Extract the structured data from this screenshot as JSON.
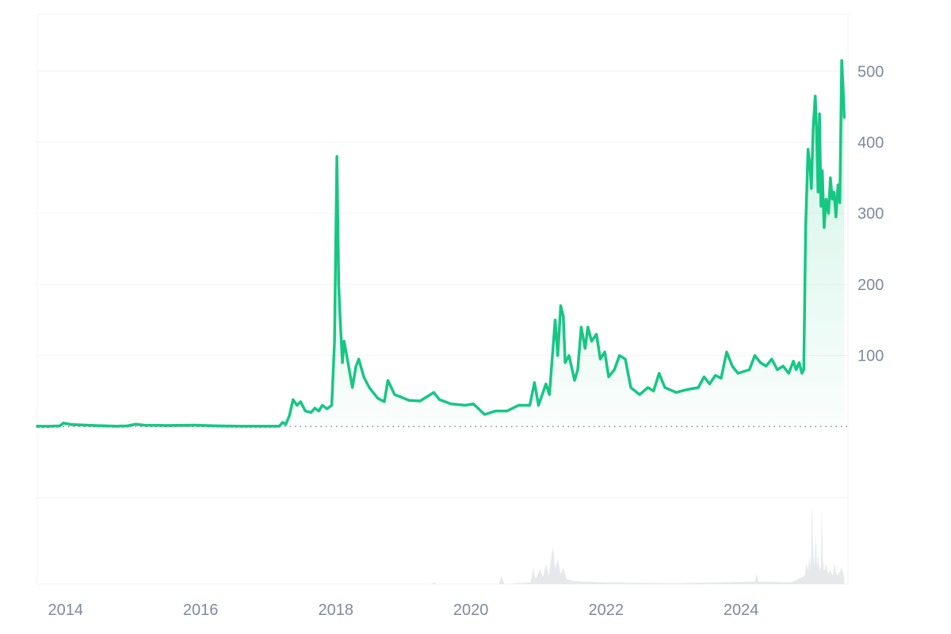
{
  "chart_data": {
    "type": "line",
    "ylim": [
      -100,
      580
    ],
    "xlim": [
      "2013-08-01",
      "2025-08-01"
    ],
    "y_ticks": [
      100,
      200,
      300,
      400,
      500
    ],
    "y_tick_labels": [
      "100",
      "200",
      "300",
      "400",
      "500"
    ],
    "x_ticks": [
      "2014-01-01",
      "2016-01-01",
      "2018-01-01",
      "2020-01-01",
      "2022-01-01",
      "2024-01-01"
    ],
    "x_tick_labels": [
      "2014",
      "2016",
      "2018",
      "2020",
      "2022",
      "2024"
    ],
    "reference_value": 0,
    "grid": true,
    "colors": {
      "up_line": "#16c784",
      "down_line": "#ea3943",
      "grid": "#eff2f5",
      "tick_text": "#808a9d",
      "volume": "#e6e8ec"
    },
    "series": [
      {
        "values": [
          [
            "2013-08-01",
            0.5
          ],
          [
            "2013-10-01",
            0.4
          ],
          [
            "2013-12-01",
            1.0
          ],
          [
            "2013-12-20",
            5.0
          ],
          [
            "2014-02-01",
            3.0
          ],
          [
            "2014-06-01",
            1.5
          ],
          [
            "2014-10-01",
            0.5
          ],
          [
            "2014-12-01",
            1.0
          ],
          [
            "2015-01-15",
            3.5
          ],
          [
            "2015-03-01",
            2.0
          ],
          [
            "2015-07-01",
            1.5
          ],
          [
            "2015-12-01",
            2.0
          ],
          [
            "2016-04-01",
            1.0
          ],
          [
            "2016-08-01",
            0.5
          ],
          [
            "2016-12-01",
            0.6
          ],
          [
            "2017-03-01",
            0.6
          ],
          [
            "2017-03-20",
            6.0
          ],
          [
            "2017-04-05",
            3.0
          ],
          [
            "2017-04-25",
            15.0
          ],
          [
            "2017-05-15",
            38.0
          ],
          [
            "2017-06-05",
            30.0
          ],
          [
            "2017-06-25",
            35.0
          ],
          [
            "2017-07-20",
            22.0
          ],
          [
            "2017-08-20",
            20.0
          ],
          [
            "2017-09-10",
            26.0
          ],
          [
            "2017-10-01",
            22.0
          ],
          [
            "2017-10-20",
            30.0
          ],
          [
            "2017-11-15",
            25.0
          ],
          [
            "2017-12-10",
            30.0
          ],
          [
            "2017-12-25",
            120.0
          ],
          [
            "2018-01-07",
            380.0
          ],
          [
            "2018-01-17",
            200.0
          ],
          [
            "2018-01-25",
            150.0
          ],
          [
            "2018-02-06",
            90.0
          ],
          [
            "2018-02-15",
            120.0
          ],
          [
            "2018-03-01",
            100.0
          ],
          [
            "2018-04-01",
            55.0
          ],
          [
            "2018-04-20",
            85.0
          ],
          [
            "2018-05-05",
            95.0
          ],
          [
            "2018-06-01",
            70.0
          ],
          [
            "2018-07-01",
            55.0
          ],
          [
            "2018-08-15",
            40.0
          ],
          [
            "2018-09-20",
            35.0
          ],
          [
            "2018-10-10",
            65.0
          ],
          [
            "2018-11-15",
            45.0
          ],
          [
            "2018-12-15",
            42.0
          ],
          [
            "2019-02-01",
            37.0
          ],
          [
            "2019-04-01",
            36.0
          ],
          [
            "2019-06-15",
            48.0
          ],
          [
            "2019-07-15",
            38.0
          ],
          [
            "2019-09-15",
            32.0
          ],
          [
            "2019-12-01",
            30.0
          ],
          [
            "2020-01-15",
            32.0
          ],
          [
            "2020-03-15",
            17.0
          ],
          [
            "2020-05-15",
            22.0
          ],
          [
            "2020-07-15",
            22.0
          ],
          [
            "2020-09-15",
            30.0
          ],
          [
            "2020-11-15",
            30.0
          ],
          [
            "2020-12-10",
            62.0
          ],
          [
            "2021-01-01",
            30.0
          ],
          [
            "2021-02-10",
            60.0
          ],
          [
            "2021-03-01",
            45.0
          ],
          [
            "2021-04-01",
            150.0
          ],
          [
            "2021-04-15",
            100.0
          ],
          [
            "2021-05-01",
            170.0
          ],
          [
            "2021-05-15",
            155.0
          ],
          [
            "2021-05-25",
            90.0
          ],
          [
            "2021-06-15",
            100.0
          ],
          [
            "2021-07-15",
            65.0
          ],
          [
            "2021-08-01",
            80.0
          ],
          [
            "2021-08-20",
            140.0
          ],
          [
            "2021-09-10",
            110.0
          ],
          [
            "2021-09-25",
            140.0
          ],
          [
            "2021-10-15",
            120.0
          ],
          [
            "2021-11-10",
            130.0
          ],
          [
            "2021-12-01",
            95.0
          ],
          [
            "2021-12-25",
            105.0
          ],
          [
            "2022-01-15",
            70.0
          ],
          [
            "2022-02-15",
            80.0
          ],
          [
            "2022-03-15",
            100.0
          ],
          [
            "2022-04-15",
            95.0
          ],
          [
            "2022-05-15",
            55.0
          ],
          [
            "2022-07-01",
            45.0
          ],
          [
            "2022-08-15",
            55.0
          ],
          [
            "2022-09-15",
            50.0
          ],
          [
            "2022-10-15",
            75.0
          ],
          [
            "2022-11-15",
            55.0
          ],
          [
            "2023-01-15",
            48.0
          ],
          [
            "2023-03-15",
            52.0
          ],
          [
            "2023-05-15",
            55.0
          ],
          [
            "2023-06-15",
            70.0
          ],
          [
            "2023-07-15",
            60.0
          ],
          [
            "2023-08-15",
            72.0
          ],
          [
            "2023-09-15",
            68.0
          ],
          [
            "2023-10-15",
            105.0
          ],
          [
            "2023-11-15",
            85.0
          ],
          [
            "2023-12-15",
            75.0
          ],
          [
            "2024-02-15",
            80.0
          ],
          [
            "2024-03-15",
            100.0
          ],
          [
            "2024-04-15",
            90.0
          ],
          [
            "2024-05-15",
            85.0
          ],
          [
            "2024-06-15",
            95.0
          ],
          [
            "2024-07-15",
            80.0
          ],
          [
            "2024-08-15",
            85.0
          ],
          [
            "2024-09-15",
            75.0
          ],
          [
            "2024-10-10",
            92.0
          ],
          [
            "2024-10-25",
            80.0
          ],
          [
            "2024-11-10",
            90.0
          ],
          [
            "2024-11-25",
            75.0
          ],
          [
            "2024-12-05",
            80.0
          ],
          [
            "2024-12-15",
            280.0
          ],
          [
            "2024-12-28",
            390.0
          ],
          [
            "2025-01-08",
            365.0
          ],
          [
            "2025-01-15",
            335.0
          ],
          [
            "2025-01-25",
            420.0
          ],
          [
            "2025-02-05",
            465.0
          ],
          [
            "2025-02-12",
            420.0
          ],
          [
            "2025-02-20",
            330.0
          ],
          [
            "2025-02-28",
            440.0
          ],
          [
            "2025-03-08",
            310.0
          ],
          [
            "2025-03-15",
            360.0
          ],
          [
            "2025-03-25",
            280.0
          ],
          [
            "2025-04-05",
            320.0
          ],
          [
            "2025-04-18",
            300.0
          ],
          [
            "2025-04-28",
            350.0
          ],
          [
            "2025-05-08",
            320.0
          ],
          [
            "2025-05-18",
            330.0
          ],
          [
            "2025-05-28",
            295.0
          ],
          [
            "2025-06-08",
            340.0
          ],
          [
            "2025-06-18",
            315.0
          ],
          [
            "2025-06-28",
            515.0
          ],
          [
            "2025-07-05",
            480.0
          ],
          [
            "2025-07-12",
            435.0
          ]
        ]
      }
    ],
    "volume": {
      "ylim": [
        0,
        100
      ],
      "values": [
        [
          "2013-08-01",
          0
        ],
        [
          "2019-06-01",
          0
        ],
        [
          "2019-06-15",
          2
        ],
        [
          "2019-07-01",
          0
        ],
        [
          "2020-06-01",
          0
        ],
        [
          "2020-06-15",
          10
        ],
        [
          "2020-07-01",
          0
        ],
        [
          "2020-11-20",
          2
        ],
        [
          "2020-12-05",
          20
        ],
        [
          "2020-12-15",
          6
        ],
        [
          "2021-01-10",
          18
        ],
        [
          "2021-01-25",
          8
        ],
        [
          "2021-02-10",
          25
        ],
        [
          "2021-02-25",
          10
        ],
        [
          "2021-03-20",
          45
        ],
        [
          "2021-04-01",
          18
        ],
        [
          "2021-04-15",
          30
        ],
        [
          "2021-05-01",
          12
        ],
        [
          "2021-05-15",
          20
        ],
        [
          "2021-06-01",
          6
        ],
        [
          "2021-07-01",
          4
        ],
        [
          "2021-09-01",
          3
        ],
        [
          "2022-01-01",
          2
        ],
        [
          "2023-01-01",
          1
        ],
        [
          "2024-03-15",
          3
        ],
        [
          "2024-03-25",
          12
        ],
        [
          "2024-04-05",
          3
        ],
        [
          "2024-10-01",
          2
        ],
        [
          "2024-12-10",
          10
        ],
        [
          "2024-12-20",
          25
        ],
        [
          "2024-12-28",
          15
        ],
        [
          "2025-01-05",
          35
        ],
        [
          "2025-01-12",
          15
        ],
        [
          "2025-01-18",
          98
        ],
        [
          "2025-01-25",
          40
        ],
        [
          "2025-02-01",
          20
        ],
        [
          "2025-02-08",
          60
        ],
        [
          "2025-02-15",
          20
        ],
        [
          "2025-02-22",
          35
        ],
        [
          "2025-03-01",
          15
        ],
        [
          "2025-03-08",
          22
        ],
        [
          "2025-03-12",
          95
        ],
        [
          "2025-03-18",
          30
        ],
        [
          "2025-03-25",
          15
        ],
        [
          "2025-04-05",
          25
        ],
        [
          "2025-04-15",
          12
        ],
        [
          "2025-04-25",
          18
        ],
        [
          "2025-05-10",
          10
        ],
        [
          "2025-05-20",
          24
        ],
        [
          "2025-06-01",
          10
        ],
        [
          "2025-06-20",
          15
        ],
        [
          "2025-06-28",
          20
        ],
        [
          "2025-07-05",
          14
        ],
        [
          "2025-07-12",
          8
        ]
      ]
    }
  }
}
